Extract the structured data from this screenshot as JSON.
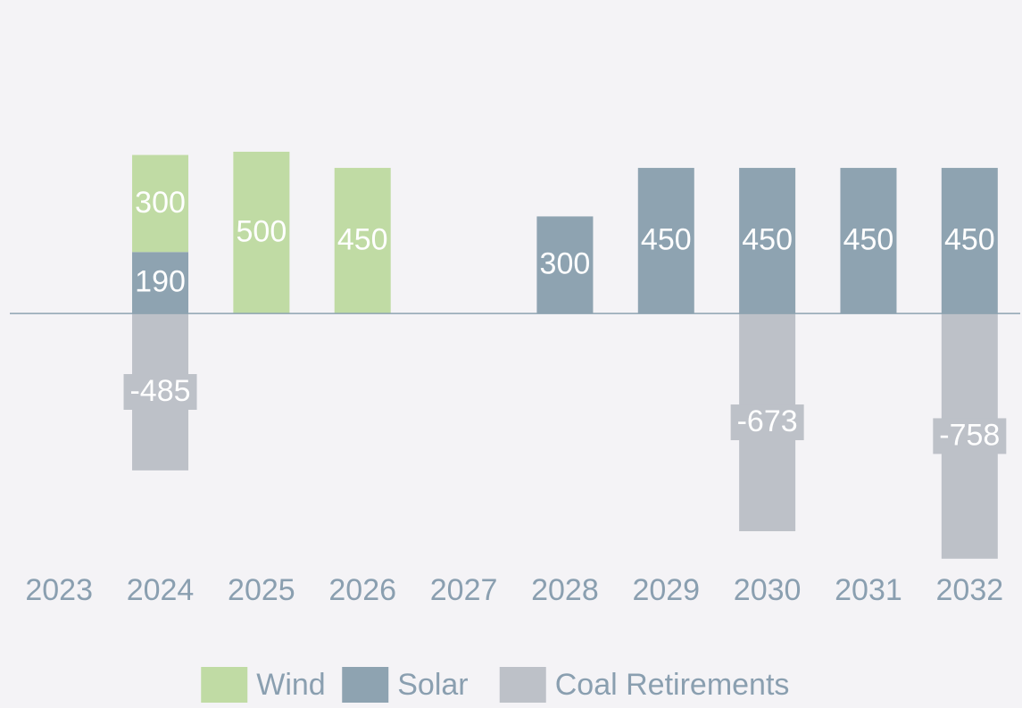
{
  "chart_data": {
    "type": "bar",
    "stacked": true,
    "categories": [
      "2023",
      "2024",
      "2025",
      "2026",
      "2027",
      "2028",
      "2029",
      "2030",
      "2031",
      "2032"
    ],
    "series": [
      {
        "name": "Wind",
        "color": "#c0dba4",
        "values": [
          null,
          300,
          500,
          450,
          null,
          null,
          null,
          null,
          null,
          null
        ]
      },
      {
        "name": "Solar",
        "color": "#8ea3b1",
        "values": [
          null,
          190,
          null,
          null,
          null,
          300,
          450,
          450,
          450,
          450
        ]
      },
      {
        "name": "Coal Retirements",
        "color": "#bdc1c8",
        "values": [
          null,
          -485,
          null,
          null,
          null,
          null,
          null,
          -673,
          null,
          -758
        ]
      }
    ],
    "ylim": [
      -800,
      900
    ],
    "legend": "bottom"
  }
}
